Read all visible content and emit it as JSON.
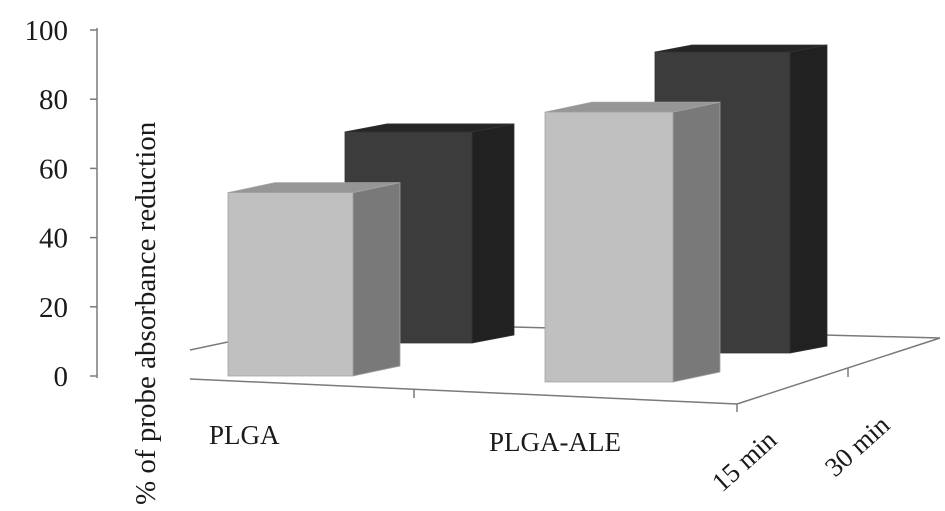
{
  "chart_data": {
    "type": "bar",
    "categories": [
      "PLGA",
      "PLGA-ALE"
    ],
    "series": [
      {
        "name": "15 min",
        "values": [
          53,
          78
        ],
        "color": "#c0c0c0"
      },
      {
        "name": "30 min",
        "values": [
          61,
          87
        ],
        "color": "#3c3c3c"
      }
    ],
    "ylabel": "% of probe absorbance reduction",
    "ylim": [
      0,
      100
    ],
    "yticks": [
      0,
      20,
      40,
      60,
      80,
      100
    ],
    "depth_axis_labels": [
      "15 min",
      "30 min"
    ],
    "style": "3d-clustered-column",
    "grid": false,
    "legend": "none"
  }
}
